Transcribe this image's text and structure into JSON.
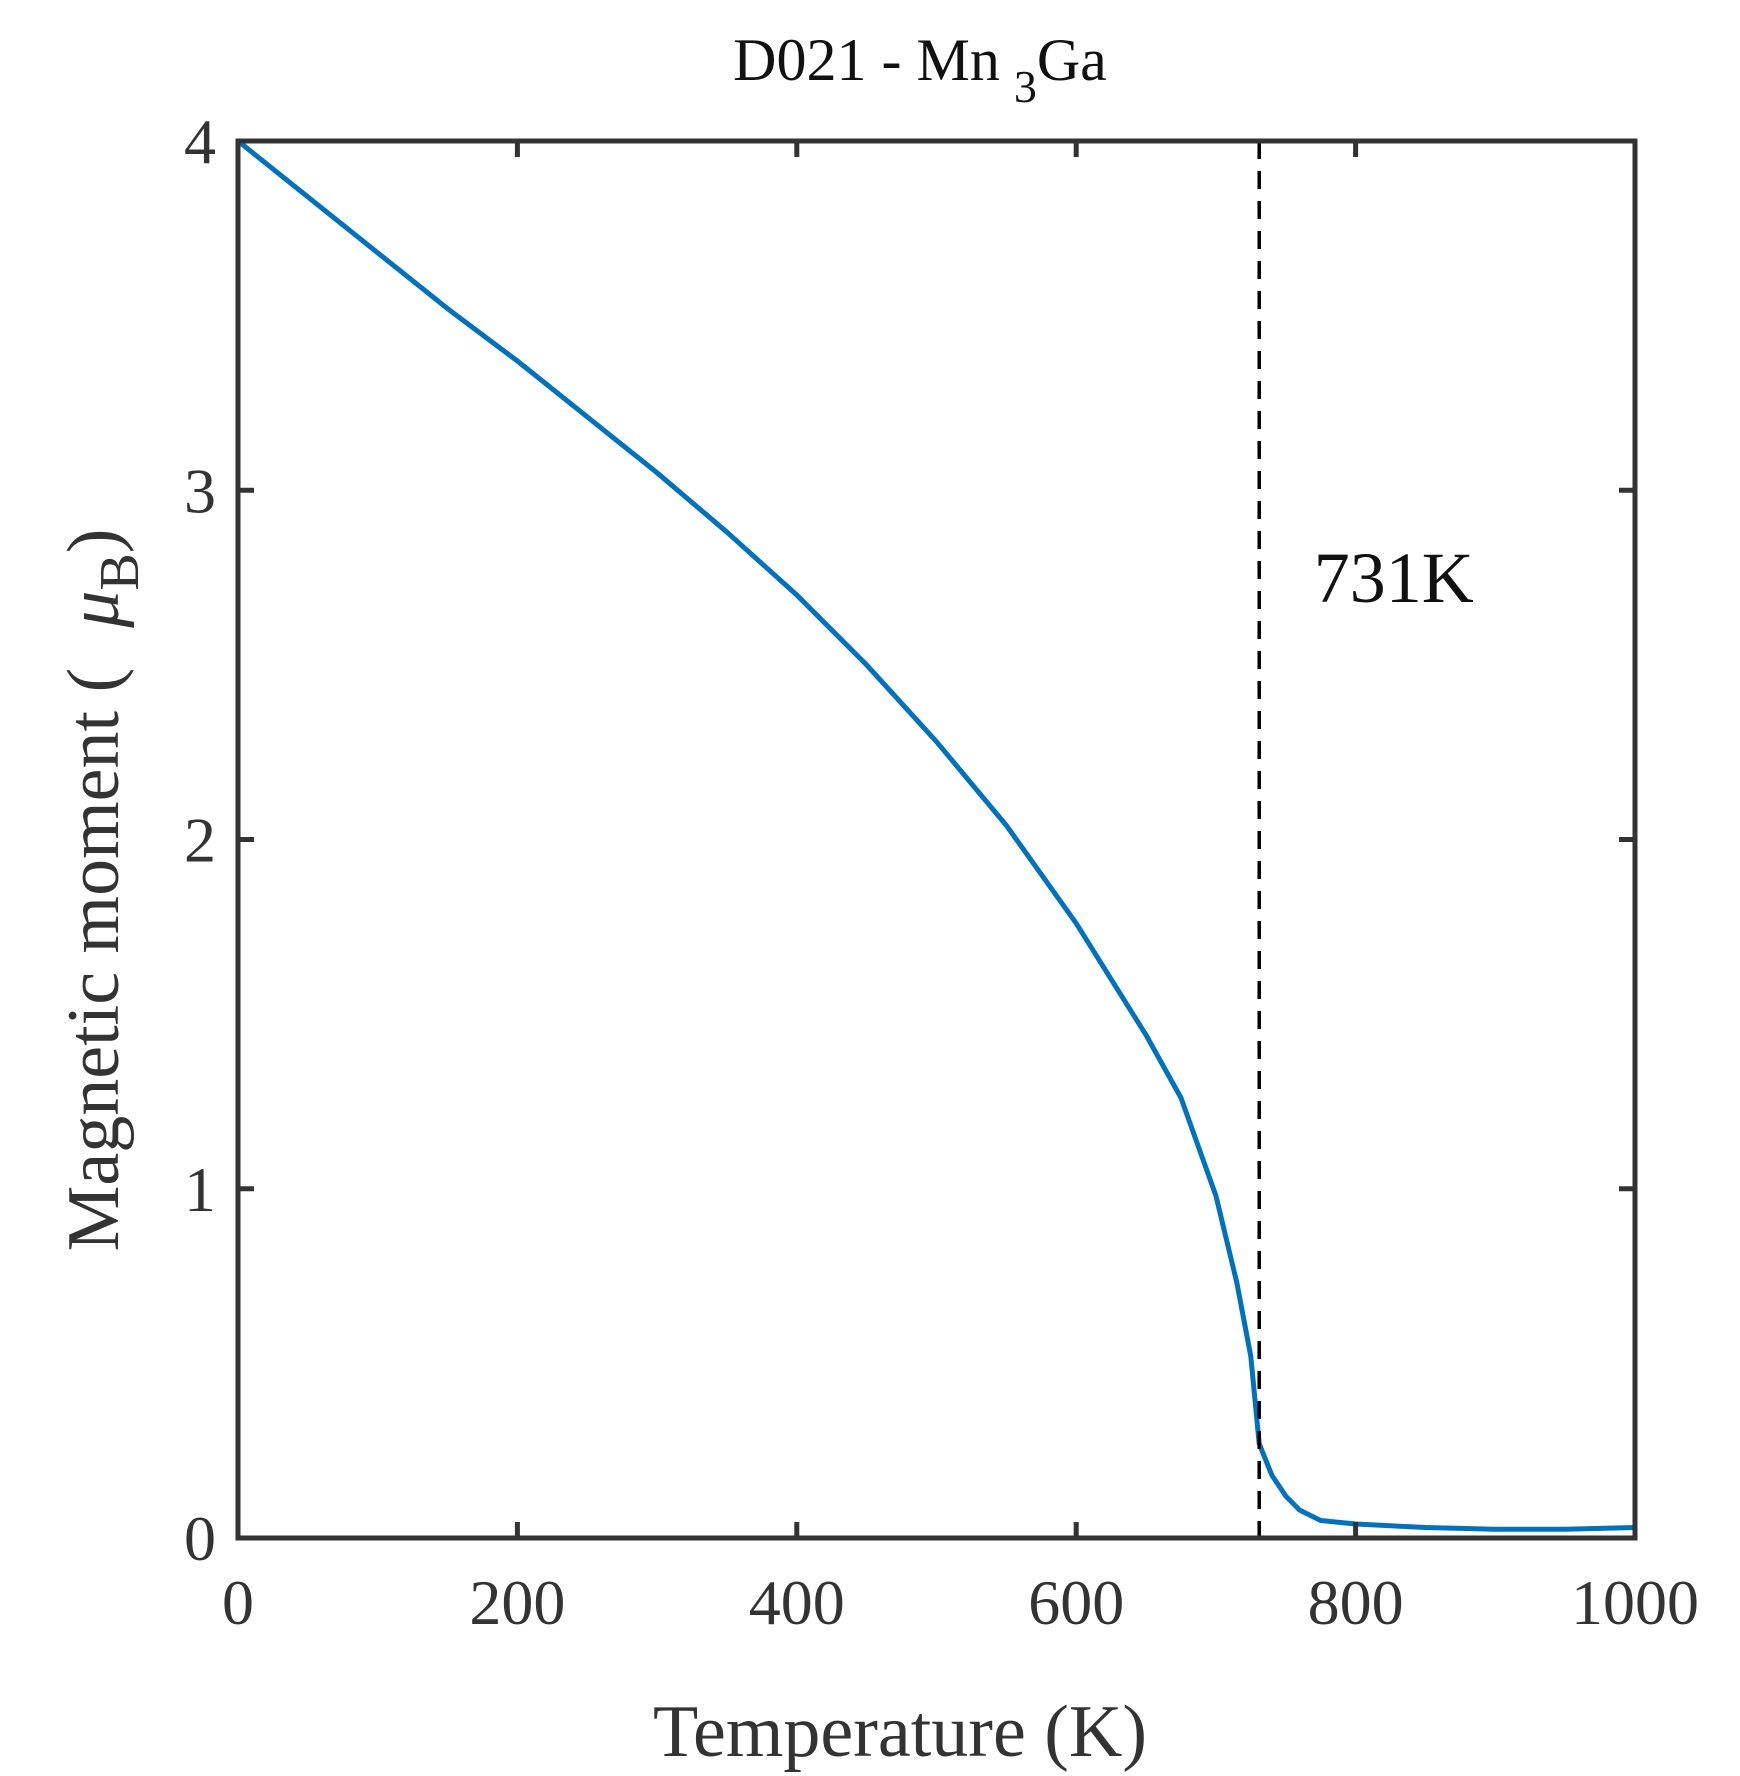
{
  "chart_data": {
    "type": "line",
    "title": "D021 - Mn",
    "title_subscript": "3",
    "title_suffix": "Ga",
    "xlabel": "Temperature (K)",
    "ylabel": "Magnetic moment (",
    "ylabel_symbol": "μ",
    "ylabel_subscript": "B",
    "ylabel_close": ")",
    "xlim": [
      0,
      1000
    ],
    "ylim": [
      0,
      4
    ],
    "xticks": [
      0,
      200,
      400,
      600,
      800,
      1000
    ],
    "yticks": [
      0,
      1,
      2,
      3,
      4
    ],
    "xtick_labels": [
      "0",
      "200",
      "400",
      "600",
      "800",
      "1000"
    ],
    "ytick_labels": [
      "0",
      "1",
      "2",
      "3",
      "4"
    ],
    "grid": false,
    "series": [
      {
        "color": "#0072BD",
        "x": [
          0,
          50,
          100,
          150,
          200,
          250,
          300,
          350,
          400,
          450,
          500,
          550,
          600,
          625,
          650,
          675,
          700,
          715,
          725,
          731,
          740,
          750,
          760,
          775,
          800,
          850,
          900,
          950,
          1000
        ],
        "y": [
          4.0,
          3.84,
          3.68,
          3.52,
          3.37,
          3.21,
          3.05,
          2.88,
          2.7,
          2.5,
          2.28,
          2.04,
          1.76,
          1.6,
          1.44,
          1.26,
          0.98,
          0.73,
          0.52,
          0.27,
          0.18,
          0.12,
          0.08,
          0.05,
          0.04,
          0.03,
          0.025,
          0.025,
          0.03
        ]
      }
    ],
    "reference_line": {
      "x": 731,
      "style": "dashed",
      "color": "#000000"
    },
    "annotations": [
      {
        "text": "731K",
        "x": 770,
        "y": 2.68
      }
    ]
  }
}
